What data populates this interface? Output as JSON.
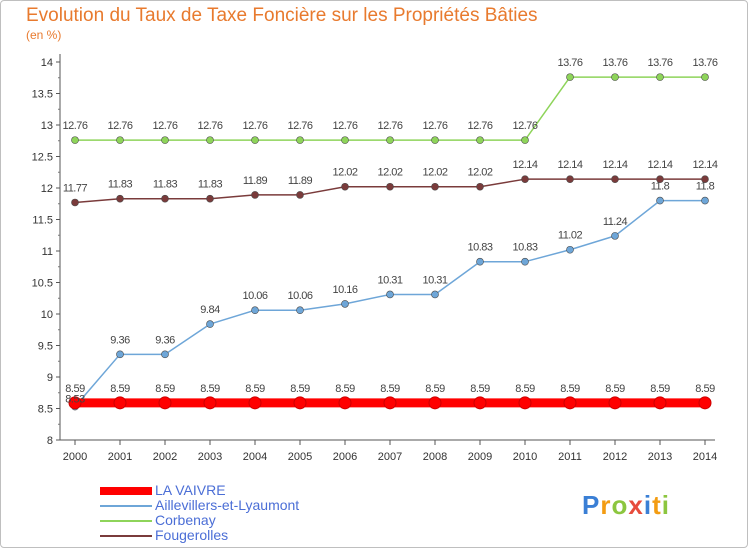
{
  "header": {
    "title": "Evolution du Taux de Taxe Foncière sur les Propriétés Bâties",
    "subtitle": "(en %)"
  },
  "logo": {
    "letters": [
      "P",
      "r",
      "o",
      "x",
      "i",
      "t",
      "i"
    ],
    "colors": [
      "#3a7fd5",
      "#f39c12",
      "#8cc63f",
      "#e74c3c",
      "#3a7fd5",
      "#f39c12",
      "#8cc63f"
    ]
  },
  "chart_data": {
    "type": "line",
    "x": [
      "2000",
      "2001",
      "2002",
      "2003",
      "2004",
      "2005",
      "2006",
      "2007",
      "2008",
      "2009",
      "2010",
      "2011",
      "2012",
      "2013",
      "2014"
    ],
    "ylim": [
      8,
      14
    ],
    "yticks": [
      "8",
      "8.5",
      "9",
      "9.5",
      "10",
      "10.5",
      "11",
      "11.5",
      "12",
      "12.5",
      "13",
      "13.5",
      "14"
    ],
    "grid": false,
    "legend_position": "bottom-left",
    "series": [
      {
        "name": "LA VAIVRE",
        "color": "#ff0000",
        "values": [
          8.59,
          8.59,
          8.59,
          8.59,
          8.59,
          8.59,
          8.59,
          8.59,
          8.59,
          8.59,
          8.59,
          8.59,
          8.59,
          8.59,
          8.59
        ],
        "labels": [
          "8.59",
          "8.59",
          "8.59",
          "8.59",
          "8.59",
          "8.59",
          "8.59",
          "8.59",
          "8.59",
          "8.59",
          "8.59",
          "8.59",
          "8.59",
          "8.59",
          "8.59"
        ]
      },
      {
        "name": "Aillevillers-et-Lyaumont",
        "color": "#6ea6d8",
        "values": [
          8.53,
          9.36,
          9.36,
          9.84,
          10.06,
          10.06,
          10.16,
          10.31,
          10.31,
          10.83,
          10.83,
          11.02,
          11.24,
          11.8,
          11.8
        ],
        "labels": [
          "8.53",
          "9.36",
          "9.36",
          "9.84",
          "10.06",
          "10.06",
          "10.16",
          "10.31",
          "10.31",
          "10.83",
          "10.83",
          "11.02",
          "11.24",
          "11.8",
          "11.8"
        ]
      },
      {
        "name": "Corbenay",
        "color": "#8ed45a",
        "values": [
          12.76,
          12.76,
          12.76,
          12.76,
          12.76,
          12.76,
          12.76,
          12.76,
          12.76,
          12.76,
          12.76,
          13.76,
          13.76,
          13.76,
          13.76
        ],
        "labels": [
          "12.76",
          "12.76",
          "12.76",
          "12.76",
          "12.76",
          "12.76",
          "12.76",
          "12.76",
          "12.76",
          "12.76",
          "12.76",
          "13.76",
          "13.76",
          "13.76",
          "13.76"
        ]
      },
      {
        "name": "Fougerolles",
        "color": "#7a3b3b",
        "values": [
          11.77,
          11.83,
          11.83,
          11.83,
          11.89,
          11.89,
          12.02,
          12.02,
          12.02,
          12.02,
          12.14,
          12.14,
          12.14,
          12.14,
          12.14
        ],
        "labels": [
          "11.77",
          "11.83",
          "11.83",
          "11.83",
          "11.89",
          "11.89",
          "12.02",
          "12.02",
          "12.02",
          "12.02",
          "12.14",
          "12.14",
          "12.14",
          "12.14",
          "12.14"
        ]
      }
    ]
  }
}
